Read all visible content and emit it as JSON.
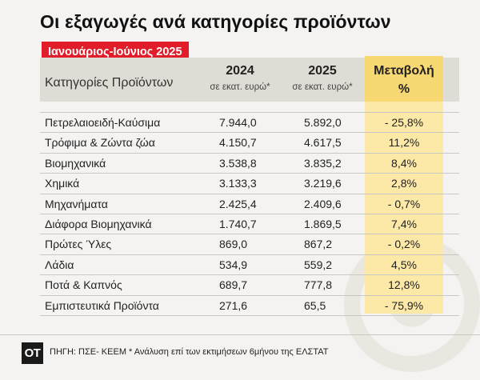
{
  "title": "Οι εξαγωγές ανά κατηγορίες προϊόντων",
  "period": "Ιανουάριος-Ιούνιος 2025",
  "header": {
    "category": "Κατηγορίες Προϊόντων",
    "year_2024": "2024",
    "year_2025": "2025",
    "unit_2024": "σε εκατ. ευρώ*",
    "unit_2025": "σε εκατ. ευρώ*",
    "change": "Μεταβολή",
    "change_unit": "%"
  },
  "rows": [
    {
      "name": "Πετρελαιοειδή-Καύσιμα",
      "v2024": "7.944,0",
      "v2025": "5.892,0",
      "change": "- 25,8%"
    },
    {
      "name": "Τρόφιμα & Ζώντα ζώα",
      "v2024": "4.150,7",
      "v2025": "4.617,5",
      "change": "11,2%"
    },
    {
      "name": "Βιομηχανικά",
      "v2024": "3.538,8",
      "v2025": "3.835,2",
      "change": "8,4%"
    },
    {
      "name": "Χημικά",
      "v2024": "3.133,3",
      "v2025": "3.219,6",
      "change": "2,8%"
    },
    {
      "name": "Μηχανήματα",
      "v2024": "2.425,4",
      "v2025": "2.409,6",
      "change": "- 0,7%"
    },
    {
      "name": "Διάφορα Βιομηχανικά",
      "v2024": "1.740,7",
      "v2025": "1.869,5",
      "change": "7,4%"
    },
    {
      "name": "Πρώτες Ύλες",
      "v2024": "869,0",
      "v2025": "867,2",
      "change": "- 0,2%"
    },
    {
      "name": "Λάδια",
      "v2024": "534,9",
      "v2025": "559,2",
      "change": "4,5%"
    },
    {
      "name": "Ποτά & Καπνός",
      "v2024": "689,7",
      "v2025": "777,8",
      "change": "12,8%"
    },
    {
      "name": "Εμπιστευτικά Προϊόντα",
      "v2024": "271,6",
      "v2025": "65,5",
      "change": "- 75,9%"
    }
  ],
  "footer": {
    "logo": "OT",
    "source": "ΠΗΓΗ: ΠΣΕ- ΚΕΕΜ * Ανάλυση επί των εκτιμήσεων 6μήνου της ΕΛΣΤΑΤ"
  },
  "colors": {
    "accent_red": "#e11d2a",
    "highlight_yellow": "#f8d873",
    "column_yellow": "#fce9a7",
    "header_band": "#dedcd4"
  }
}
